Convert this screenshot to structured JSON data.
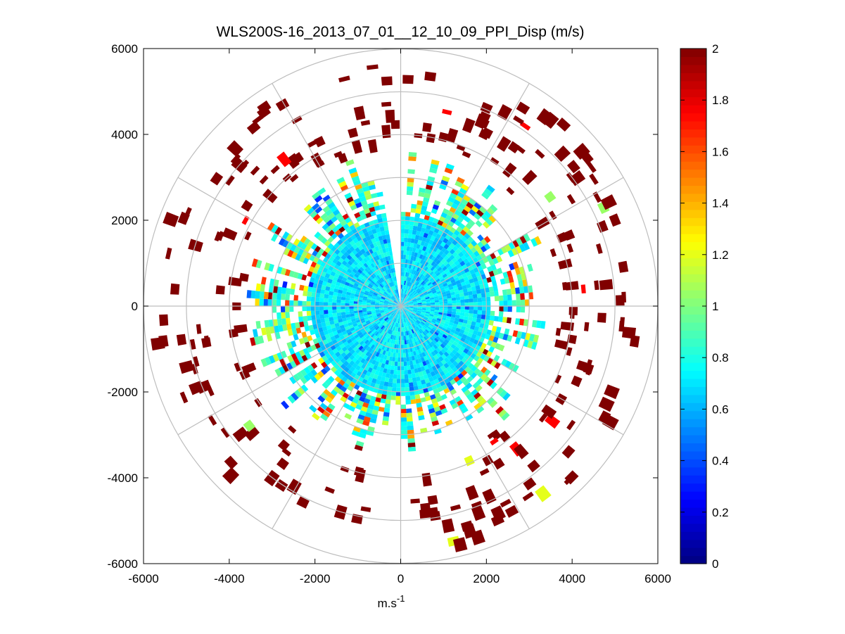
{
  "chart_data": {
    "type": "polar-ppi-heatmap",
    "title": "WLS200S-16_2013_07_01__12_10_09_PPI_Disp (m/s)",
    "xlabel": "m.s",
    "xlabel_superscript": "-1",
    "ylabel": "",
    "xlim": [
      -6000,
      6000
    ],
    "ylim": [
      -6000,
      6000
    ],
    "xticks": [
      -6000,
      -4000,
      -2000,
      0,
      2000,
      4000,
      6000
    ],
    "yticks": [
      -6000,
      -4000,
      -2000,
      0,
      2000,
      4000,
      6000
    ],
    "xtick_labels": [
      "-6000",
      "-4000",
      "-2000",
      "0",
      "2000",
      "4000",
      "6000"
    ],
    "ytick_labels": [
      "-6000",
      "-4000",
      "-2000",
      "0",
      "2000",
      "4000",
      "6000"
    ],
    "range_rings_m": [
      1000,
      2000,
      3000,
      4000,
      5000,
      6000
    ],
    "spoke_angles_deg": [
      0,
      30,
      60,
      90,
      120,
      150,
      180,
      210,
      240,
      270,
      300,
      330
    ],
    "grid": true,
    "colorbar": {
      "colormap": "jet",
      "clim": [
        0,
        2
      ],
      "ticks": [
        0,
        0.2,
        0.4,
        0.6,
        0.8,
        1,
        1.2,
        1.4,
        1.6,
        1.8,
        2
      ],
      "tick_labels": [
        "0",
        "0.2",
        "0.4",
        "0.6",
        "0.8",
        "1",
        "1.2",
        "1.4",
        "1.6",
        "1.8",
        "2"
      ]
    },
    "field": {
      "dense_core_radius_m": 2100,
      "core_typical_value": 0.7,
      "patchy_band_max_radius_m": 3600,
      "scattered_cells_max_radius_m": 5600,
      "scattered_typical_value": 2,
      "range_gate_m": 100,
      "beam_width_deg": 3,
      "empty_wedge_deg": [
        -8,
        1
      ]
    }
  }
}
